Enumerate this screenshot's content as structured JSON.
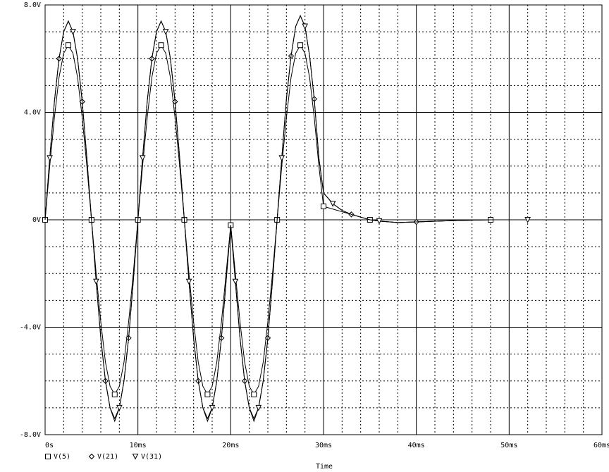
{
  "chart_data": {
    "type": "line",
    "x_label": "Time",
    "x": [
      0,
      0.5,
      1,
      1.5,
      2,
      2.5,
      3,
      3.5,
      4,
      4.5,
      5,
      5.5,
      6,
      6.5,
      7,
      7.5,
      8,
      8.5,
      9,
      9.5,
      10,
      10.5,
      11,
      11.5,
      12,
      12.5,
      13,
      13.5,
      14,
      14.5,
      15,
      15.5,
      16,
      16.5,
      17,
      17.5,
      18,
      18.5,
      19,
      19.5,
      20,
      20.5,
      21,
      21.5,
      22,
      22.5,
      23,
      23.5,
      24,
      24.5,
      25,
      25.5,
      26,
      26.5,
      27,
      27.5,
      28,
      28.5,
      29,
      29.5,
      30,
      31,
      32,
      33,
      34,
      35,
      36,
      38,
      40,
      44,
      48,
      52
    ],
    "series": [
      {
        "name": "V(5)",
        "color": "#000000",
        "marker": "square",
        "values": [
          0,
          2.0,
          3.8,
          5.3,
          6.2,
          6.5,
          6.2,
          5.3,
          3.8,
          2.0,
          0,
          -2.0,
          -3.8,
          -5.3,
          -6.2,
          -6.5,
          -6.2,
          -5.3,
          -3.8,
          -2.0,
          0,
          2.0,
          3.8,
          5.3,
          6.2,
          6.5,
          6.2,
          5.3,
          3.8,
          2.0,
          0,
          -2.0,
          -3.8,
          -5.3,
          -6.2,
          -6.5,
          -6.2,
          -5.3,
          -3.8,
          -2.0,
          -0.2,
          -2.0,
          -3.8,
          -5.3,
          -6.2,
          -6.5,
          -6.2,
          -5.3,
          -3.8,
          -2.0,
          0,
          2.0,
          3.8,
          5.3,
          6.2,
          6.5,
          6.2,
          5.3,
          3.8,
          2.0,
          0.5,
          0.4,
          0.3,
          0.2,
          0.1,
          0,
          -0.05,
          -0.1,
          -0.08,
          -0.03,
          0,
          0
        ]
      },
      {
        "name": "V(21)",
        "color": "#000000",
        "marker": "diamond",
        "values": [
          0,
          2.3,
          4.4,
          6.0,
          7.0,
          7.4,
          7.0,
          6.0,
          4.4,
          2.3,
          0,
          -2.3,
          -4.4,
          -6.0,
          -7.0,
          -7.4,
          -7.0,
          -6.0,
          -4.4,
          -2.3,
          0,
          2.3,
          4.4,
          6.0,
          7.0,
          7.4,
          7.0,
          6.0,
          4.4,
          2.3,
          0,
          -2.3,
          -4.4,
          -6.0,
          -7.0,
          -7.4,
          -7.0,
          -6.0,
          -4.4,
          -2.3,
          -0.2,
          -2.3,
          -4.4,
          -6.0,
          -7.0,
          -7.4,
          -7.0,
          -6.0,
          -4.4,
          -2.3,
          0,
          2.3,
          4.5,
          6.1,
          7.2,
          7.6,
          7.2,
          6.1,
          4.5,
          2.3,
          1.0,
          0.6,
          0.35,
          0.2,
          0.1,
          0,
          -0.05,
          -0.1,
          -0.08,
          -0.03,
          0,
          0
        ]
      },
      {
        "name": "V(31)",
        "color": "#000000",
        "marker": "triangle",
        "values": [
          0,
          2.3,
          4.4,
          6.0,
          7.0,
          7.4,
          7.0,
          6.0,
          4.4,
          2.3,
          0,
          -2.3,
          -4.4,
          -6.0,
          -7.0,
          -7.5,
          -7.0,
          -6.0,
          -4.4,
          -2.3,
          0,
          2.3,
          4.4,
          6.0,
          7.0,
          7.4,
          7.0,
          6.0,
          4.4,
          2.3,
          0,
          -2.3,
          -4.4,
          -6.0,
          -7.0,
          -7.5,
          -7.0,
          -6.0,
          -4.4,
          -2.3,
          -0.2,
          -2.3,
          -4.4,
          -6.0,
          -7.0,
          -7.5,
          -7.0,
          -6.0,
          -4.4,
          -2.3,
          0,
          2.3,
          4.5,
          6.1,
          7.2,
          7.6,
          7.2,
          6.1,
          4.5,
          2.3,
          1.0,
          0.6,
          0.35,
          0.2,
          0.1,
          0,
          -0.05,
          -0.1,
          -0.08,
          -0.03,
          0,
          0
        ]
      }
    ],
    "xlim": [
      0,
      60
    ],
    "xticks": [
      {
        "value": 0,
        "label": "0s"
      },
      {
        "value": 10,
        "label": "10ms"
      },
      {
        "value": 20,
        "label": "20ms"
      },
      {
        "value": 30,
        "label": "30ms"
      },
      {
        "value": 40,
        "label": "40ms"
      },
      {
        "value": 50,
        "label": "50ms"
      },
      {
        "value": 60,
        "label": "60ms"
      }
    ],
    "ylim": [
      -8,
      8
    ],
    "yticks": [
      {
        "value": -8,
        "label": "-8.0V"
      },
      {
        "value": -4,
        "label": "-4.0V"
      },
      {
        "value": 0,
        "label": "0V"
      },
      {
        "value": 4,
        "label": "4.0V"
      },
      {
        "value": 8,
        "label": "8.0V"
      }
    ],
    "grid": true,
    "minor_grid": {
      "x": 5,
      "y": 4
    },
    "legend": "bottom-left"
  }
}
